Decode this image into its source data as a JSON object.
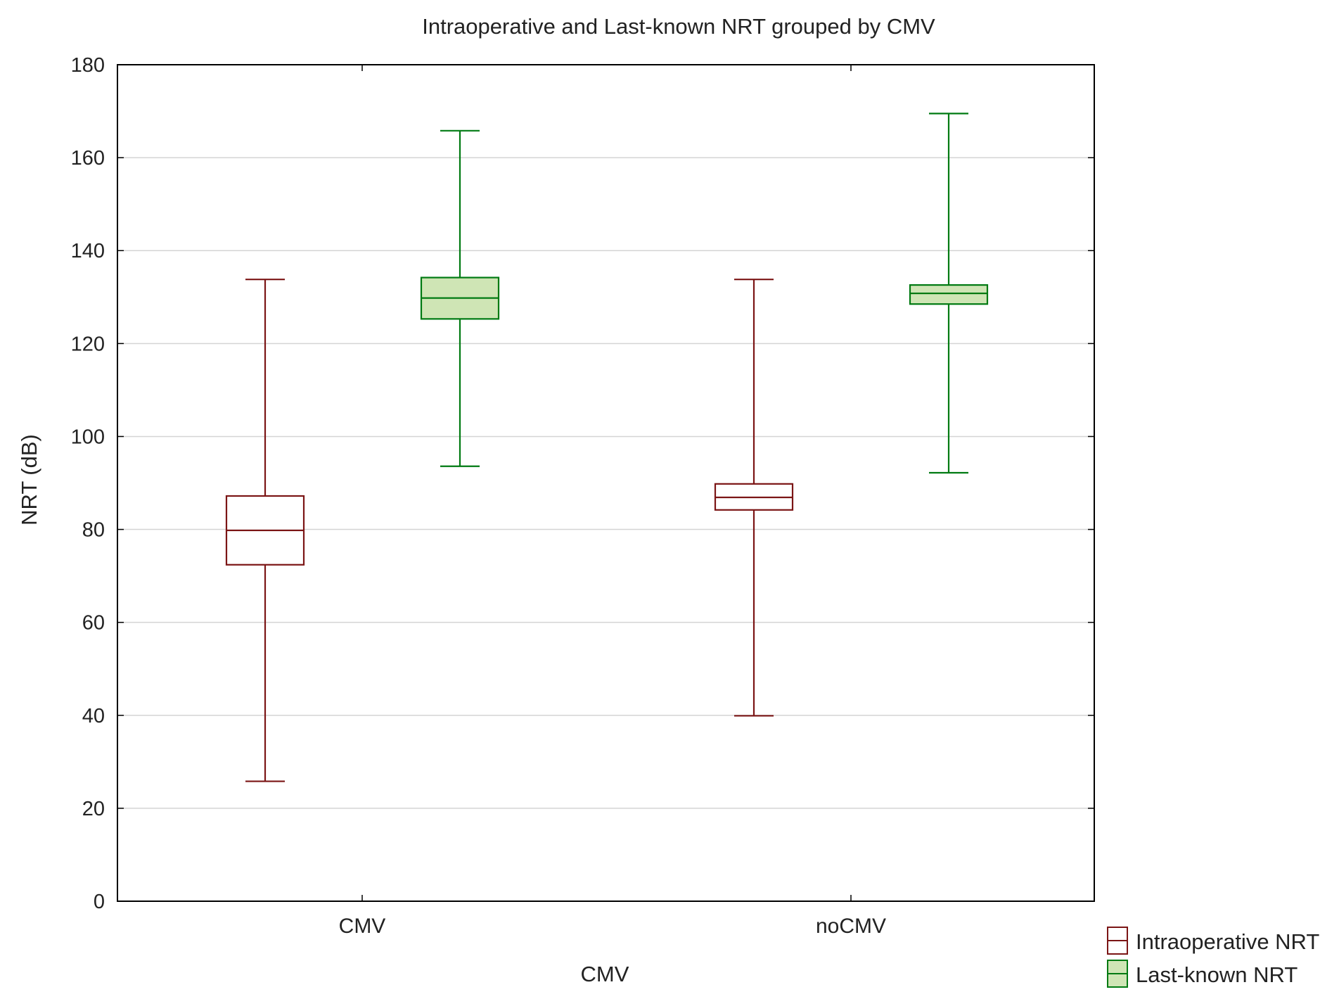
{
  "chart_data": {
    "type": "boxplot",
    "title": "Intraoperative and Last-known NRT grouped by CMV",
    "xlabel": "CMV",
    "ylabel": "NRT (dB)",
    "ylim": [
      0,
      180
    ],
    "yticks": [
      0,
      20,
      40,
      60,
      80,
      100,
      120,
      140,
      160,
      180
    ],
    "grid": true,
    "legend_position": "bottom-right",
    "categories": [
      "CMV",
      "noCMV"
    ],
    "series": [
      {
        "name": "Intraoperative NRT",
        "color": "#7b1515",
        "fill": "#ffffff",
        "boxes": [
          {
            "category": "CMV",
            "min": 25.8,
            "q1": 72.4,
            "median": 79.8,
            "q3": 87.2,
            "max": 133.8
          },
          {
            "category": "noCMV",
            "min": 39.9,
            "q1": 84.2,
            "median": 86.9,
            "q3": 89.8,
            "max": 133.8
          }
        ]
      },
      {
        "name": "Last-known NRT",
        "color": "#007a12",
        "fill": "#cfe5b5",
        "boxes": [
          {
            "category": "CMV",
            "min": 93.6,
            "q1": 125.3,
            "median": 129.8,
            "q3": 134.2,
            "max": 165.8
          },
          {
            "category": "noCMV",
            "min": 92.2,
            "q1": 128.5,
            "median": 130.8,
            "q3": 132.6,
            "max": 169.5
          }
        ]
      }
    ]
  }
}
